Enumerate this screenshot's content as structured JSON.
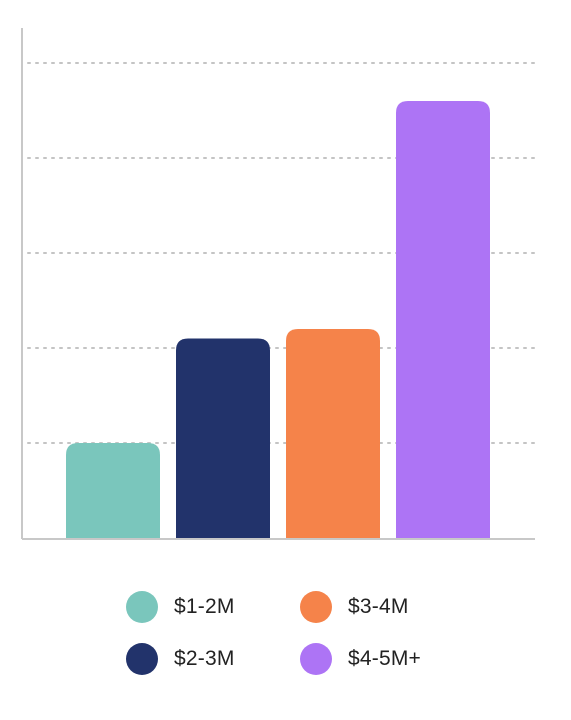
{
  "chart_data": {
    "type": "bar",
    "categories": [
      "$1-2M",
      "$2-3M",
      "$3-4M",
      "$4-5M+"
    ],
    "values": [
      1,
      2.1,
      2.2,
      4.6
    ],
    "ylim": [
      0,
      5
    ],
    "grid": true,
    "title": "",
    "xlabel": "",
    "ylabel": "",
    "legend": {
      "placement": "bottom",
      "entries": [
        "$1-2M",
        "$3-4M",
        "$2-3M",
        "$4-5M+"
      ]
    },
    "colors": {
      "$1-2M": "#7ac6bc",
      "$2-3M": "#22336b",
      "$3-4M": "#f5834a",
      "$4-5M+": "#ad74f5"
    },
    "axis_color": "#c8c8c8",
    "grid_color": "#c4c4c4"
  }
}
